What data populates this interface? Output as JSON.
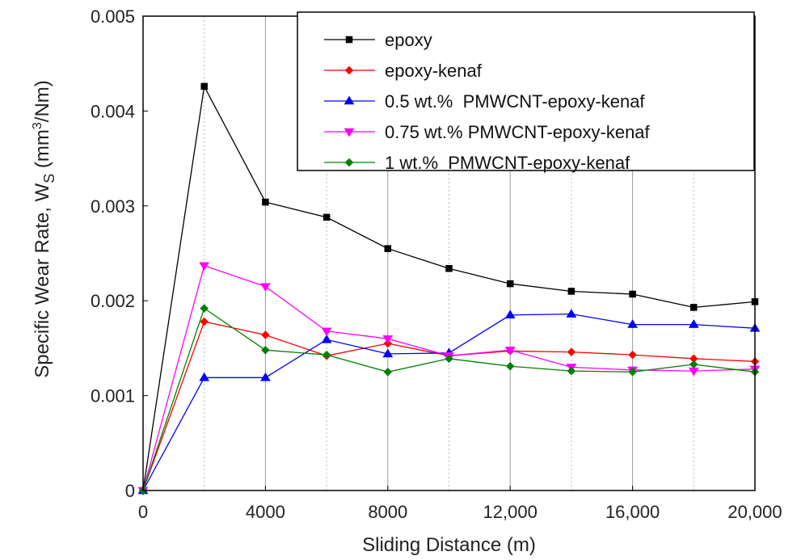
{
  "chart_data": {
    "type": "line",
    "x": [
      0,
      2000,
      4000,
      6000,
      8000,
      10000,
      12000,
      14000,
      16000,
      18000,
      20000
    ],
    "xlim": [
      0,
      20000
    ],
    "ylim": [
      0,
      0.005
    ],
    "x_ticks": [
      0,
      4000,
      8000,
      12000,
      16000,
      20000
    ],
    "x_tick_labels": [
      "0",
      "4000",
      "8000",
      "12,000",
      "16,000",
      "20,000"
    ],
    "y_ticks": [
      0,
      0.001,
      0.002,
      0.003,
      0.004,
      0.005
    ],
    "y_tick_labels": [
      "0",
      "0.001",
      "0.002",
      "0.003",
      "0.004",
      "0.005"
    ],
    "xlabel": "Sliding Distance (m)",
    "ylabel": "Specific Wear Rate, Ws (mm3/Nm)",
    "grid": "vertical",
    "legend_position": "top-right",
    "series": [
      {
        "name": "epoxy",
        "color": "#000000",
        "marker": "square",
        "values": [
          0,
          0.00426,
          0.00304,
          0.00288,
          0.00255,
          0.00234,
          0.00218,
          0.0021,
          0.00207,
          0.00193,
          0.00199
        ]
      },
      {
        "name": "epoxy-kenaf",
        "color": "#ff0000",
        "marker": "diamond",
        "values": [
          0,
          0.00178,
          0.00164,
          0.00142,
          0.00155,
          0.00142,
          0.00147,
          0.00146,
          0.00143,
          0.00139,
          0.00136
        ]
      },
      {
        "name": "0.5 wt.%  PMWCNT-epoxy-kenaf",
        "color": "#0000ff",
        "marker": "triangle-up",
        "values": [
          0,
          0.00119,
          0.00119,
          0.00159,
          0.00144,
          0.00145,
          0.00185,
          0.00186,
          0.00175,
          0.00175,
          0.00171
        ]
      },
      {
        "name": "0.75 wt.% PMWCNT-epoxy-kenaf",
        "color": "#ff00ff",
        "marker": "triangle-down",
        "values": [
          0,
          0.00237,
          0.00215,
          0.00168,
          0.0016,
          0.00142,
          0.00148,
          0.0013,
          0.00127,
          0.00126,
          0.00128
        ]
      },
      {
        "name": "1 wt.%  PMWCNT-epoxy-kenaf",
        "color": "#008000",
        "marker": "diamond",
        "values": [
          0,
          0.00192,
          0.00148,
          0.00143,
          0.00125,
          0.00139,
          0.00131,
          0.00126,
          0.00125,
          0.00133,
          0.00125
        ]
      }
    ]
  }
}
